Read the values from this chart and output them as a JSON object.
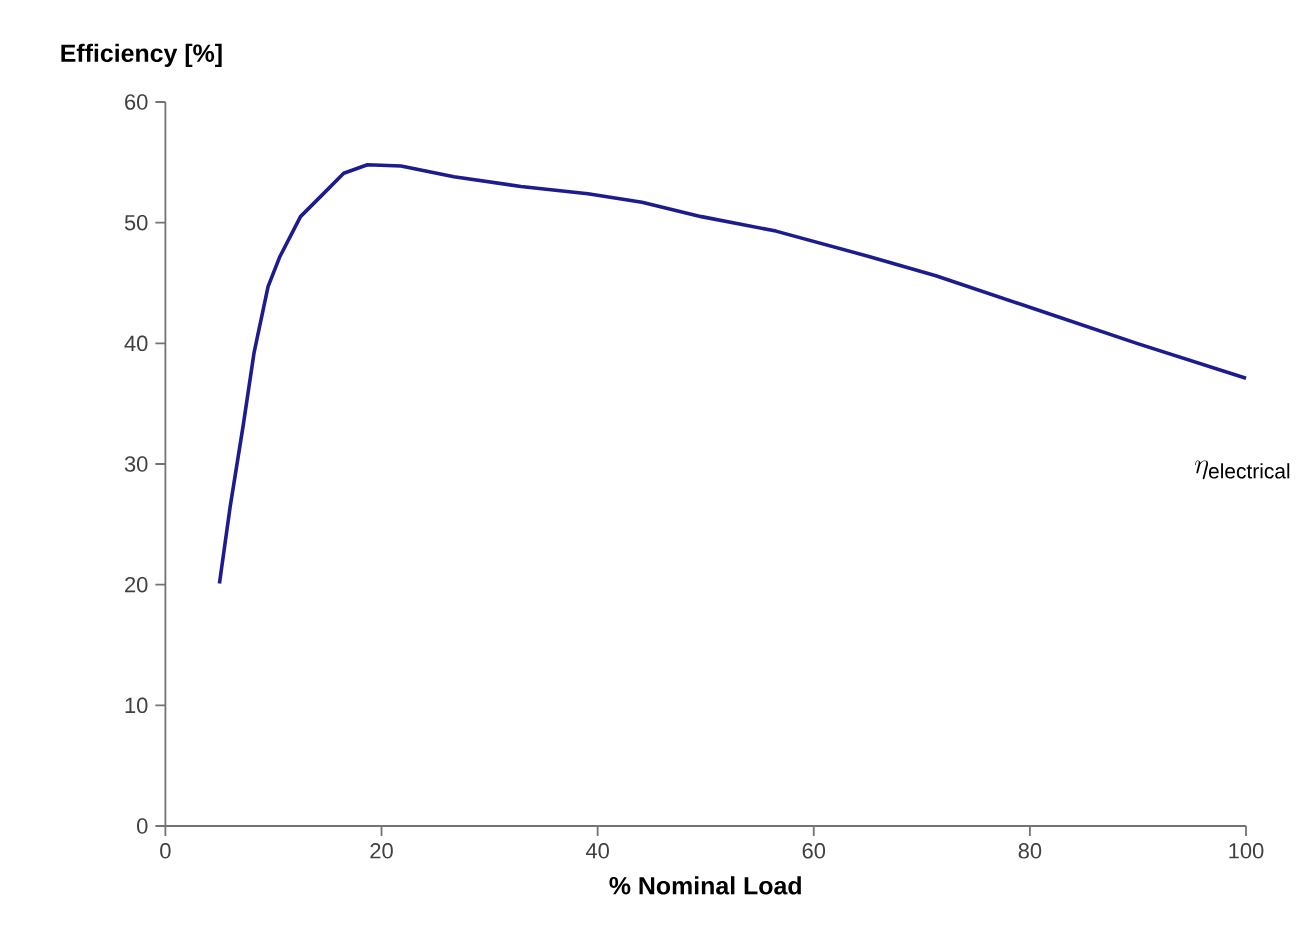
{
  "chart_data": {
    "type": "line",
    "xlabel": "% Nominal Load",
    "ylabel": "Efficiency [%]",
    "xlim": [
      0,
      100
    ],
    "ylim": [
      0,
      60
    ],
    "xticks": [
      0,
      20,
      40,
      60,
      80,
      100
    ],
    "yticks": [
      0,
      10,
      20,
      30,
      40,
      50,
      60
    ],
    "grid": false,
    "legend": false,
    "marker": "none",
    "line_style": "solid",
    "series": [
      {
        "name": "\\eta_{\\mathrm{electrical}}",
        "color": "#1c1c8e",
        "x": [
          5,
          6,
          7.2,
          8.2,
          9.5,
          10.6,
          12.5,
          14.4,
          16.5,
          18.7,
          21.8,
          26.7,
          32.9,
          39.1,
          44.1,
          49.6,
          56.5,
          65.1,
          71.3,
          80.6,
          89.9,
          100
        ],
        "values": [
          20.1,
          26.5,
          33.2,
          39.2,
          44.7,
          47.2,
          50.5,
          52.2,
          54.1,
          54.8,
          54.7,
          53.8,
          53.0,
          52.4,
          51.7,
          50.5,
          49.3,
          47.2,
          45.6,
          42.8,
          40.0,
          37.1
        ]
      }
    ]
  }
}
